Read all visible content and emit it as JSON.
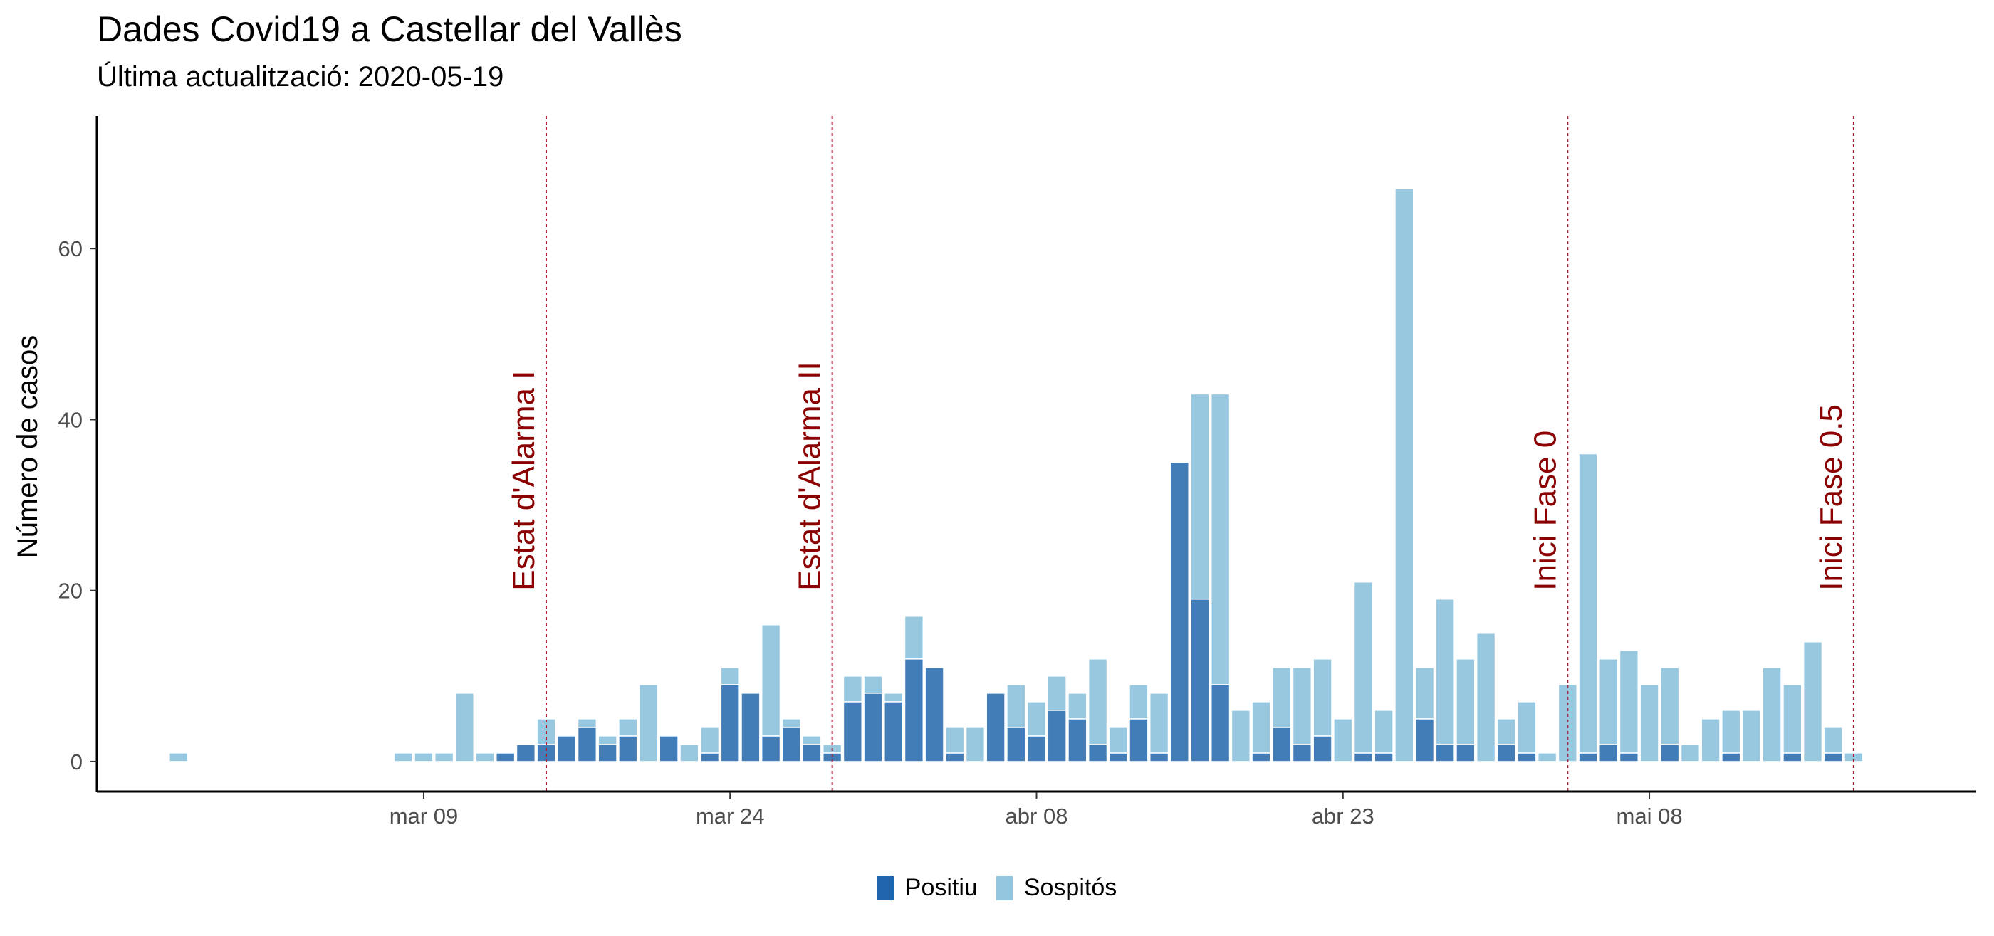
{
  "chart_data": {
    "type": "bar",
    "stacked": true,
    "title": "Dades Covid19 a Castellar del Vallès",
    "subtitle": "Última actualització: 2020-05-19",
    "xlabel": "",
    "ylabel": "Número de casos",
    "x_start_date": "2020-02-26",
    "x_end_date": "2020-05-19",
    "xlim": [
      "2020-02-22",
      "2020-05-24"
    ],
    "ylim": [
      -3.5,
      75.5
    ],
    "x_ticks": [
      {
        "date": "2020-03-09",
        "label": "mar 09"
      },
      {
        "date": "2020-03-24",
        "label": "mar 24"
      },
      {
        "date": "2020-04-08",
        "label": "abr 08"
      },
      {
        "date": "2020-04-23",
        "label": "abr 23"
      },
      {
        "date": "2020-05-08",
        "label": "mai 08"
      }
    ],
    "y_ticks": [
      0,
      20,
      40,
      60
    ],
    "grid": false,
    "legend_position": "bottom",
    "series": [
      {
        "name": "Positiu",
        "color": "#2166ac",
        "values": [
          0,
          0,
          0,
          0,
          0,
          0,
          0,
          0,
          0,
          0,
          0,
          0,
          0,
          0,
          0,
          0,
          1,
          2,
          2,
          3,
          4,
          2,
          3,
          0,
          3,
          0,
          1,
          9,
          8,
          3,
          4,
          2,
          1,
          7,
          8,
          7,
          12,
          11,
          1,
          0,
          8,
          4,
          3,
          6,
          5,
          2,
          1,
          5,
          1,
          35,
          19,
          9,
          0,
          1,
          4,
          2,
          3,
          0,
          1,
          1,
          0,
          5,
          2,
          2,
          0,
          2,
          1,
          0,
          0,
          1,
          2,
          1,
          0,
          2,
          0,
          0,
          1,
          0,
          0,
          1,
          0,
          1,
          0
        ]
      },
      {
        "name": "Sospitós",
        "color": "#92c5de",
        "values": [
          1,
          0,
          0,
          0,
          0,
          0,
          0,
          0,
          0,
          0,
          0,
          1,
          1,
          1,
          8,
          1,
          0,
          0,
          3,
          0,
          1,
          1,
          2,
          9,
          0,
          2,
          3,
          2,
          0,
          13,
          1,
          1,
          1,
          3,
          2,
          1,
          5,
          0,
          3,
          4,
          0,
          5,
          4,
          4,
          3,
          10,
          3,
          4,
          7,
          0,
          24,
          34,
          6,
          6,
          7,
          9,
          9,
          5,
          20,
          5,
          67,
          6,
          17,
          10,
          15,
          3,
          6,
          1,
          9,
          35,
          10,
          12,
          9,
          9,
          2,
          5,
          5,
          6,
          11,
          8,
          14,
          3,
          1
        ]
      }
    ],
    "annotations": [
      {
        "date": "2020-03-15",
        "label": "Estat d'Alarma I"
      },
      {
        "date": "2020-03-29",
        "label": "Estat d'Alarma II"
      },
      {
        "date": "2020-05-04",
        "label": "Inici Fase 0"
      },
      {
        "date": "2020-05-18",
        "label": "Inici Fase 0.5"
      }
    ],
    "annotation_color": "#8b0000"
  }
}
